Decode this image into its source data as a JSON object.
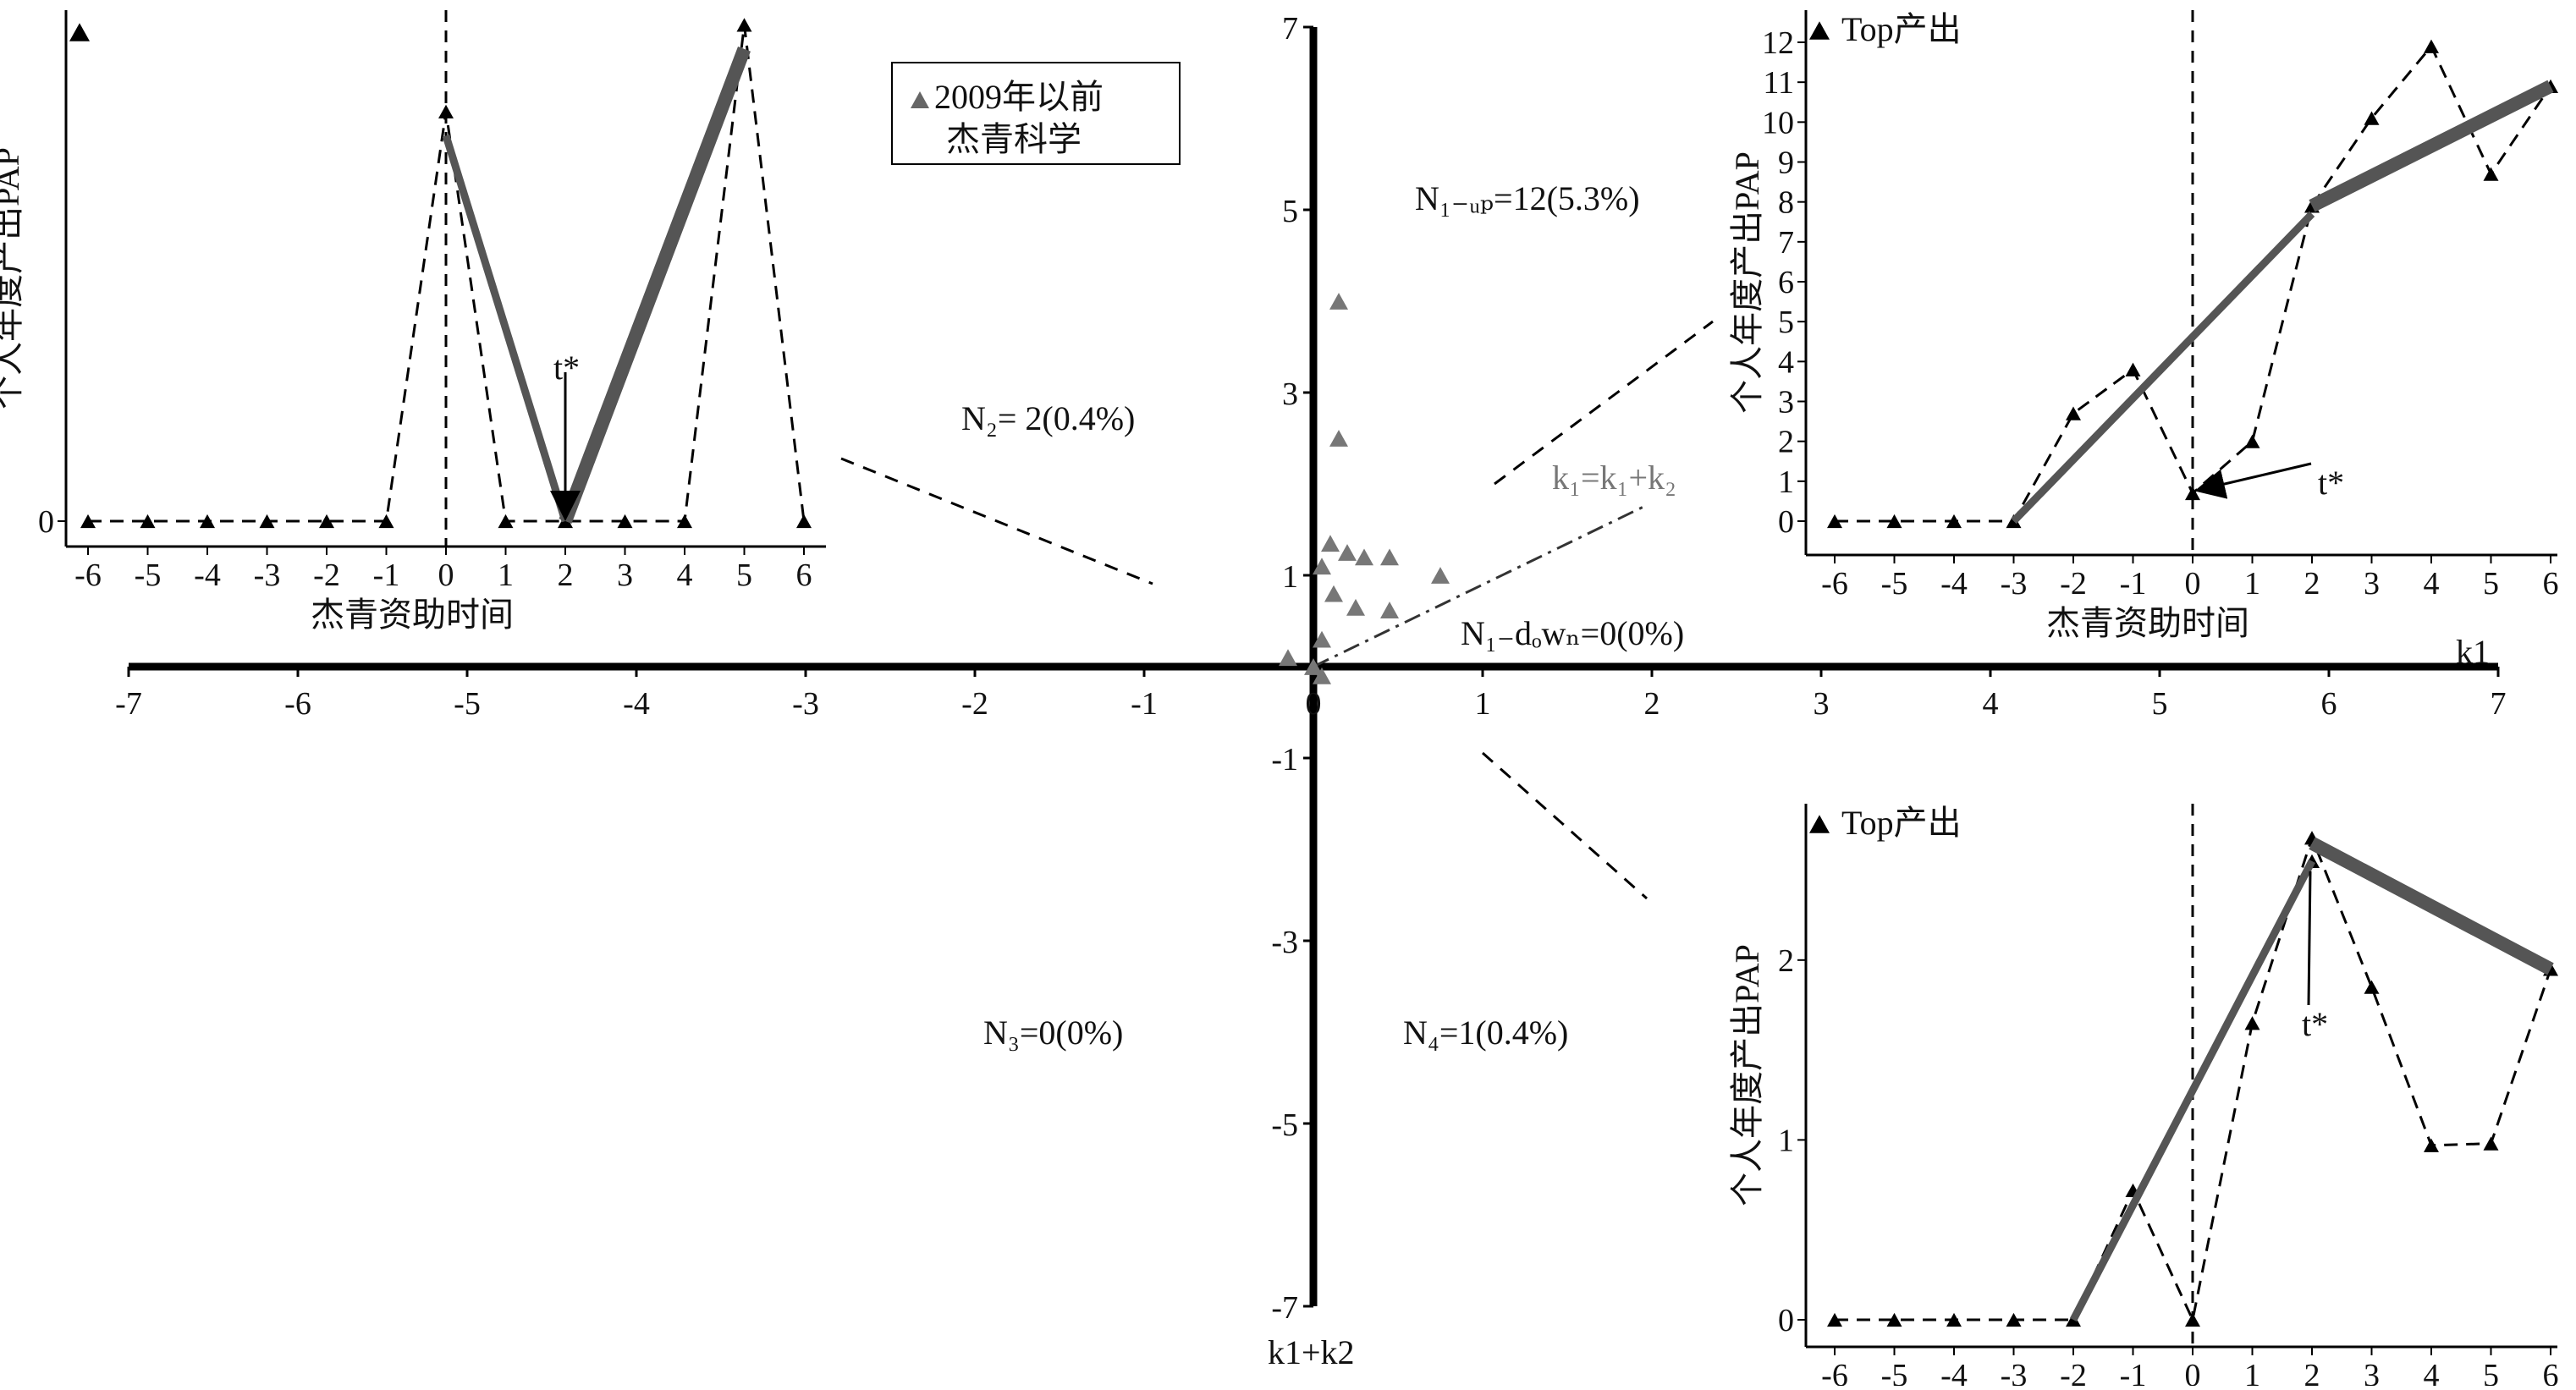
{
  "chart_data": [
    {
      "id": "scatter",
      "type": "scatter",
      "xlabel": "k1",
      "ylabel": "k1+k2",
      "xlim": [
        -7,
        7
      ],
      "ylim": [
        -7,
        7
      ],
      "x_ticks": [
        "-7",
        "-6",
        "-5",
        "-4",
        "-3",
        "-2",
        "-1",
        "0",
        "1",
        "2",
        "3",
        "4",
        "5",
        "6",
        "7"
      ],
      "y_ticks": [
        "7",
        "5",
        "3",
        "1",
        "-1",
        "-3",
        "-5",
        "-7"
      ],
      "legend": [
        "2009年以前",
        "杰青科学"
      ],
      "colors": {
        "points": "#777777",
        "axes": "#000000",
        "diag": "#555555"
      },
      "diagonal_label": "k₁=k₁+k₂",
      "points": [
        [
          0.15,
          4.0
        ],
        [
          0.15,
          2.5
        ],
        [
          0.1,
          1.35
        ],
        [
          0.2,
          1.25
        ],
        [
          0.3,
          1.2
        ],
        [
          0.45,
          1.2
        ],
        [
          0.05,
          1.1
        ],
        [
          0.12,
          0.8
        ],
        [
          0.25,
          0.65
        ],
        [
          0.45,
          0.62
        ],
        [
          0.75,
          1.0
        ],
        [
          0.05,
          0.3
        ],
        [
          -0.15,
          0.1
        ],
        [
          0.05,
          -0.1
        ],
        [
          0.0,
          0.0
        ]
      ],
      "quadrants": {
        "n1_up": "N₁₋ᵤₚ=12(5.3%)",
        "n1_down": "N₁₋dₒwₙ=0(0%)",
        "n2": "N₂= 2(0.4%)",
        "n3": "N₃=0(0%)",
        "n4": "N₄=1(0.4%)"
      }
    },
    {
      "id": "inset_top_left",
      "type": "line",
      "title": "",
      "xlabel": "杰青资助时间",
      "ylabel": "个人年度产出PAP",
      "x": [
        -6,
        -5,
        -4,
        -3,
        -2,
        -1,
        0,
        1,
        2,
        3,
        4,
        5,
        6
      ],
      "y_dashed": [
        0,
        0,
        0,
        0,
        0,
        0,
        8.5,
        0,
        0,
        0,
        0,
        10.3,
        0
      ],
      "ylim": [
        0,
        10.5
      ],
      "y_ticks": [
        "0"
      ],
      "fit_segments": [
        [
          [
            0,
            8
          ],
          [
            2,
            0
          ]
        ],
        [
          [
            2,
            0
          ],
          [
            5,
            9.8
          ]
        ]
      ],
      "t_star_x": 2,
      "t_star_label": "t*"
    },
    {
      "id": "inset_top_right",
      "type": "line",
      "title": "Top产出",
      "xlabel": "杰青资助时间",
      "ylabel": "个人年度产出PAP",
      "x": [
        -6,
        -5,
        -4,
        -3,
        -2,
        -1,
        0,
        1,
        2,
        3,
        4,
        5,
        6
      ],
      "y_dashed": [
        0,
        0,
        0,
        0,
        2.7,
        3.8,
        0.7,
        2.0,
        7.9,
        10.1,
        11.9,
        8.7,
        10.9
      ],
      "ylim": [
        0,
        12
      ],
      "y_ticks": [
        "0",
        "1",
        "2",
        "3",
        "4",
        "5",
        "6",
        "7",
        "8",
        "9",
        "10",
        "11",
        "12"
      ],
      "fit_segments": [
        [
          [
            -3,
            0
          ],
          [
            2,
            7.7
          ]
        ],
        [
          [
            2,
            7.9
          ],
          [
            6,
            10.9
          ]
        ]
      ],
      "t_star_x": 0,
      "t_star_label": "t*"
    },
    {
      "id": "inset_bottom_right",
      "type": "line",
      "title": "Top产出",
      "xlabel": "",
      "ylabel": "个人年度产出PAP",
      "x": [
        -6,
        -5,
        -4,
        -3,
        -2,
        -1,
        0,
        1,
        2,
        3,
        4,
        5,
        6
      ],
      "y_dashed": [
        0,
        0,
        0,
        0,
        0,
        0.72,
        0,
        1.65,
        2.68,
        1.85,
        0.97,
        0.98,
        1.95
      ],
      "extra_point": [
        2,
        2.55
      ],
      "ylim": [
        0,
        2.7
      ],
      "y_ticks": [
        "0",
        "1",
        "2"
      ],
      "fit_segments": [
        [
          [
            -2,
            0
          ],
          [
            2,
            2.55
          ]
        ],
        [
          [
            2,
            2.65
          ],
          [
            6,
            1.95
          ]
        ]
      ],
      "t_star_x": 2,
      "t_star_label": "t*"
    }
  ]
}
